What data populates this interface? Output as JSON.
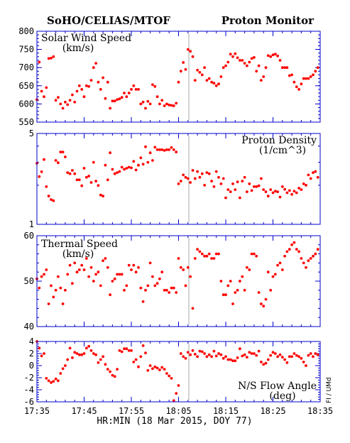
{
  "header": {
    "left_title": "SoHO/CELIAS/MTOF",
    "right_title": "Proton Monitor"
  },
  "x_axis": {
    "title": "HR:MIN (18 Mar 2015, DOY 77)",
    "ticks": [
      "17:35",
      "17:45",
      "17:55",
      "18:05",
      "18:15",
      "18:25",
      "18:35"
    ],
    "range_minutes": [
      0,
      60
    ]
  },
  "side_label": "FI / UMd",
  "colors": {
    "points": "#ff0000",
    "frame": "#0000cc",
    "gap_line": "#aaaaaa"
  },
  "chart_data": [
    {
      "type": "scatter",
      "title_lines": [
        "Solar Wind Speed",
        "(km/s)"
      ],
      "ylim": [
        550,
        800
      ],
      "y_ticks": [
        "550",
        "600",
        "650",
        "700",
        "750",
        "800"
      ],
      "series": [
        {
          "x": [
            0.0,
            0.5,
            1.0,
            1.5,
            2.0,
            2.5,
            3.0,
            3.5,
            4.0,
            4.5,
            5.0,
            5.5,
            6.0,
            6.5,
            7.0,
            7.5,
            8.0,
            8.5,
            9.0,
            9.5,
            10.0,
            10.5,
            11.0,
            11.5,
            12.0,
            12.5,
            13.0,
            13.5,
            14.0,
            14.5,
            15.0,
            15.5,
            16.0,
            16.5,
            17.0,
            17.5,
            18.0,
            18.5,
            19.0,
            19.5,
            20.0,
            20.5,
            21.0,
            21.5,
            22.0,
            22.5,
            23.0,
            23.5,
            24.0,
            24.5,
            25.0,
            25.5,
            26.0,
            26.5,
            27.0,
            27.5,
            28.0,
            28.5,
            29.0,
            29.5,
            30.0,
            30.5,
            31.0,
            31.5,
            32.0,
            32.5,
            33.0,
            33.5,
            34.0,
            34.5,
            35.0,
            35.5,
            36.0,
            36.5,
            37.0,
            37.5,
            38.0,
            38.5,
            39.0,
            39.5,
            40.0,
            40.5,
            41.0,
            41.5,
            42.0,
            42.5,
            43.0,
            43.5,
            44.0,
            44.5,
            45.0,
            45.5,
            46.0,
            46.5,
            47.0,
            47.5,
            48.0,
            48.5,
            49.0,
            49.5,
            50.0,
            50.5,
            51.0,
            51.5,
            52.0,
            52.5,
            53.0,
            53.5,
            54.0,
            54.5,
            55.0,
            55.5,
            56.0,
            56.5,
            57.0,
            57.5,
            58.0,
            58.5,
            59.0,
            59.5
          ],
          "y": [
            612,
            715,
            635,
            620,
            645,
            725,
            726,
            730,
            610,
            618,
            600,
            588,
            605,
            598,
            610,
            625,
            605,
            635,
            650,
            640,
            620,
            650,
            648,
            665,
            700,
            712,
            660,
            640,
            672,
            615,
            660,
            588,
            608,
            608,
            612,
            614,
            618,
            630,
            620,
            630,
            640,
            650,
            640,
            640,
            600,
            605,
            588,
            607,
            600,
            653,
            648,
            620,
            600,
            610,
            595,
            600,
            597,
            596,
            595,
            602,
            660,
            690,
            714,
            695,
            750,
            745,
            730,
            665,
            693,
            687,
            680,
            700,
            665,
            670,
            660,
            657,
            650,
            655,
            675,
            700,
            705,
            715,
            737,
            730,
            738,
            727,
            720,
            720,
            712,
            705,
            715,
            725,
            728,
            690,
            705,
            665,
            675,
            700,
            733,
            730,
            735,
            737,
            732,
            720,
            700,
            700,
            700,
            678,
            680,
            660,
            647,
            640,
            655,
            670,
            670,
            670,
            675,
            680,
            690,
            700
          ]
        }
      ]
    },
    {
      "type": "scatter",
      "scale": "log",
      "title_lines": [
        "Proton Density",
        "(1/cm^3)"
      ],
      "ylim": [
        1,
        5
      ],
      "y_ticks": [
        "1",
        "5"
      ],
      "series": [
        {
          "x": [
            0.0,
            0.5,
            1.0,
            1.5,
            2.0,
            2.5,
            3.0,
            3.5,
            4.0,
            4.5,
            5.0,
            5.5,
            6.0,
            6.5,
            7.0,
            7.5,
            8.0,
            8.5,
            9.0,
            9.5,
            10.0,
            10.5,
            11.0,
            11.5,
            12.0,
            12.5,
            13.0,
            13.5,
            14.0,
            14.5,
            15.0,
            15.5,
            16.0,
            16.5,
            17.0,
            17.5,
            18.0,
            18.5,
            19.0,
            19.5,
            20.0,
            20.5,
            21.0,
            21.5,
            22.0,
            22.5,
            23.0,
            23.5,
            24.0,
            24.5,
            25.0,
            25.5,
            26.0,
            26.5,
            27.0,
            27.5,
            28.0,
            28.5,
            29.0,
            29.5,
            30.0,
            30.5,
            31.0,
            31.5,
            32.0,
            32.5,
            33.0,
            33.5,
            34.0,
            34.5,
            35.0,
            35.5,
            36.0,
            36.5,
            37.0,
            37.5,
            38.0,
            38.5,
            39.0,
            39.5,
            40.0,
            40.5,
            41.0,
            41.5,
            42.0,
            42.5,
            43.0,
            43.5,
            44.0,
            44.5,
            45.0,
            45.5,
            46.0,
            46.5,
            47.0,
            47.5,
            48.0,
            48.5,
            49.0,
            49.5,
            50.0,
            50.5,
            51.0,
            51.5,
            52.0,
            52.5,
            53.0,
            53.5,
            54.0,
            54.5,
            55.0,
            55.5,
            56.0,
            56.5,
            57.0,
            57.5,
            58.0,
            58.5,
            59.0,
            59.5
          ],
          "y": [
            2.95,
            2.33,
            2.54,
            3.15,
            1.95,
            1.65,
            1.55,
            1.52,
            3.1,
            2.98,
            3.6,
            3.6,
            3.3,
            2.5,
            2.45,
            2.6,
            2.45,
            2.2,
            2.2,
            1.98,
            2.7,
            2.3,
            2.35,
            2.1,
            3.0,
            2.15,
            1.99,
            1.68,
            1.65,
            2.85,
            2.2,
            3.55,
            2.65,
            2.45,
            2.5,
            2.55,
            2.75,
            2.65,
            2.7,
            2.75,
            2.72,
            3.05,
            2.62,
            2.85,
            3.25,
            2.9,
            3.95,
            3.0,
            3.55,
            3.1,
            3.92,
            3.75,
            3.75,
            3.75,
            3.7,
            3.75,
            3.75,
            3.9,
            3.75,
            3.6,
            2.05,
            2.15,
            2.4,
            2.3,
            2.25,
            2.1,
            2.6,
            2.25,
            2.55,
            2.3,
            2.45,
            2.0,
            2.5,
            2.45,
            2.15,
            1.95,
            2.55,
            2.3,
            2.05,
            2.25,
            1.6,
            1.85,
            1.78,
            2.05,
            1.85,
            2.12,
            1.6,
            2.15,
            2.3,
            1.78,
            2.05,
            1.82,
            1.95,
            1.95,
            1.98,
            2.25,
            1.85,
            1.78,
            1.65,
            1.85,
            1.75,
            1.8,
            1.78,
            1.62,
            1.95,
            1.86,
            1.75,
            1.82,
            1.7,
            1.8,
            1.75,
            1.9,
            1.85,
            2.05,
            2.0,
            2.4,
            2.25,
            2.5,
            2.55,
            2.3
          ]
        }
      ]
    },
    {
      "type": "scatter",
      "title_lines": [
        "Thermal Speed",
        "(km/s)"
      ],
      "ylim": [
        40,
        60
      ],
      "y_ticks": [
        "40",
        "50",
        "60"
      ],
      "series": [
        {
          "x": [
            0.0,
            0.5,
            1.0,
            1.5,
            2.0,
            2.5,
            3.0,
            3.5,
            4.0,
            4.5,
            5.0,
            5.5,
            6.0,
            6.5,
            7.0,
            7.5,
            8.0,
            8.5,
            9.0,
            9.5,
            10.0,
            10.5,
            11.0,
            11.5,
            12.0,
            12.5,
            13.0,
            13.5,
            14.0,
            14.5,
            15.0,
            15.5,
            16.0,
            16.5,
            17.0,
            17.5,
            18.0,
            18.5,
            19.0,
            19.5,
            20.0,
            20.5,
            21.0,
            21.5,
            22.0,
            22.5,
            23.0,
            23.5,
            24.0,
            24.5,
            25.0,
            25.5,
            26.0,
            26.5,
            27.0,
            27.5,
            28.0,
            28.5,
            29.0,
            29.5,
            30.0,
            30.5,
            31.0,
            31.5,
            32.0,
            32.5,
            33.0,
            33.5,
            34.0,
            34.5,
            35.0,
            35.5,
            36.0,
            36.5,
            37.0,
            37.5,
            38.0,
            38.5,
            39.0,
            39.5,
            40.0,
            40.5,
            41.0,
            41.5,
            42.0,
            42.5,
            43.0,
            43.5,
            44.0,
            44.5,
            45.0,
            45.5,
            46.0,
            46.5,
            47.0,
            47.5,
            48.0,
            48.5,
            49.0,
            49.5,
            50.0,
            50.5,
            51.0,
            51.5,
            52.0,
            52.5,
            53.0,
            53.5,
            54.0,
            54.5,
            55.0,
            55.5,
            56.0,
            56.5,
            57.0,
            57.5,
            58.0,
            58.5,
            59.0,
            59.5
          ],
          "y": [
            50.5,
            48.5,
            51.0,
            51.5,
            52.5,
            45.0,
            49.0,
            46.5,
            48.0,
            51.0,
            48.5,
            45.0,
            48.0,
            51.5,
            53.5,
            49.5,
            54.0,
            52.0,
            52.5,
            53.5,
            52.5,
            55.0,
            51.0,
            53.0,
            50.0,
            51.5,
            52.0,
            49.0,
            54.5,
            55.0,
            53.0,
            47.0,
            50.0,
            50.5,
            51.5,
            51.5,
            51.5,
            48.0,
            49.0,
            53.5,
            52.5,
            53.5,
            52.0,
            53.0,
            48.5,
            45.5,
            48.0,
            49.0,
            54.0,
            51.0,
            49.0,
            49.5,
            50.5,
            52.0,
            48.0,
            48.0,
            47.5,
            48.5,
            48.5,
            47.5,
            55.0,
            53.0,
            52.5,
            49.0,
            53.0,
            51.0,
            44.0,
            55.0,
            57.0,
            56.5,
            56.0,
            55.5,
            55.5,
            56.0,
            55.0,
            55.0,
            56.0,
            56.0,
            50.0,
            47.0,
            47.0,
            49.0,
            50.0,
            45.0,
            47.5,
            48.0,
            50.0,
            51.0,
            48.0,
            53.0,
            52.5,
            56.0,
            56.0,
            55.5,
            47.5,
            45.0,
            44.5,
            46.0,
            52.0,
            48.0,
            51.0,
            51.5,
            53.5,
            54.0,
            52.5,
            55.5,
            56.5,
            57.0,
            58.0,
            58.5,
            57.0,
            56.5,
            55.0,
            54.0,
            53.0,
            54.5,
            55.0,
            55.5,
            56.0,
            57.0
          ]
        }
      ]
    },
    {
      "type": "scatter",
      "title_lines": [
        "N/S Flow Angle",
        "(deg)"
      ],
      "ylim": [
        -6,
        4
      ],
      "y_ticks": [
        "-6",
        "-4",
        "-2",
        "0",
        "2",
        "4"
      ],
      "series": [
        {
          "x": [
            0.0,
            0.5,
            1.0,
            1.5,
            2.0,
            2.5,
            3.0,
            3.5,
            4.0,
            4.5,
            5.0,
            5.5,
            6.0,
            6.5,
            7.0,
            7.5,
            8.0,
            8.5,
            9.0,
            9.5,
            10.0,
            10.5,
            11.0,
            11.5,
            12.0,
            12.5,
            13.0,
            13.5,
            14.0,
            14.5,
            15.0,
            15.5,
            16.0,
            16.5,
            17.0,
            17.5,
            18.0,
            18.5,
            19.0,
            19.5,
            20.0,
            20.5,
            21.0,
            21.5,
            22.0,
            22.5,
            23.0,
            23.5,
            24.0,
            24.5,
            25.0,
            25.5,
            26.0,
            26.5,
            27.0,
            27.5,
            28.0,
            28.5,
            29.0,
            29.5,
            30.0,
            30.5,
            31.0,
            31.5,
            32.0,
            32.5,
            33.0,
            33.5,
            34.0,
            34.5,
            35.0,
            35.5,
            36.0,
            36.5,
            37.0,
            37.5,
            38.0,
            38.5,
            39.0,
            39.5,
            40.0,
            40.5,
            41.0,
            41.5,
            42.0,
            42.5,
            43.0,
            43.5,
            44.0,
            44.5,
            45.0,
            45.5,
            46.0,
            46.5,
            47.0,
            47.5,
            48.0,
            48.5,
            49.0,
            49.5,
            50.0,
            50.5,
            51.0,
            51.5,
            52.0,
            52.5,
            53.0,
            53.5,
            54.0,
            54.5,
            55.0,
            55.5,
            56.0,
            56.5,
            57.0,
            57.5,
            58.0,
            58.5,
            59.0,
            59.5
          ],
          "y": [
            4.0,
            2.9,
            1.6,
            2.0,
            -2.1,
            -2.5,
            -2.8,
            -2.6,
            -2.2,
            -2.5,
            -1.3,
            -0.5,
            0.0,
            1.0,
            2.9,
            1.3,
            2.2,
            2.0,
            1.8,
            1.8,
            2.0,
            2.9,
            3.2,
            2.5,
            2.0,
            1.8,
            0.5,
            1.0,
            1.5,
            0.2,
            -0.6,
            -1.0,
            -1.6,
            -1.8,
            -0.6,
            2.5,
            2.3,
            2.8,
            2.8,
            2.5,
            2.5,
            0.6,
            1.0,
            -0.2,
            1.5,
            3.3,
            2.1,
            -0.8,
            0.0,
            -0.5,
            -0.2,
            -0.4,
            -0.7,
            -0.3,
            -0.6,
            -1.3,
            -1.7,
            -2.1,
            -5.8,
            -4.6,
            -3.3,
            2.0,
            1.5,
            1.2,
            2.2,
            1.8,
            2.5,
            1.9,
            1.5,
            2.4,
            2.3,
            2.0,
            1.5,
            1.8,
            1.5,
            2.4,
            1.6,
            2.0,
            1.8,
            1.2,
            1.5,
            1.0,
            1.0,
            0.8,
            0.8,
            1.3,
            2.8,
            1.6,
            1.8,
            1.4,
            2.2,
            2.0,
            2.0,
            1.7,
            2.4,
            0.6,
            0.2,
            0.4,
            1.0,
            1.7,
            2.2,
            2.0,
            1.5,
            1.8,
            1.4,
            1.0,
            0.5,
            1.5,
            1.5,
            2.0,
            1.7,
            1.5,
            1.2,
            0.6,
            0.0,
            1.7,
            2.0,
            1.5,
            2.0,
            1.8
          ]
        }
      ]
    }
  ]
}
